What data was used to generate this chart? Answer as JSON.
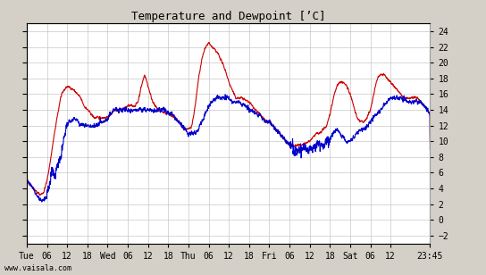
{
  "title": "Temperature and Dewpoint [’C]",
  "ylabel_right_ticks": [
    -2,
    0,
    2,
    4,
    6,
    8,
    10,
    12,
    14,
    16,
    18,
    20,
    22,
    24
  ],
  "ylim": [
    -3.0,
    25.0
  ],
  "background_color": "#d4d0c8",
  "plot_bg_color": "#ffffff",
  "grid_color": "#c8c8c8",
  "temp_color": "#cc0000",
  "dewpoint_color": "#0000cc",
  "watermark": "www.vaisala.com",
  "x_tick_labels": [
    "Tue",
    "06",
    "12",
    "18",
    "Wed",
    "06",
    "12",
    "18",
    "Thu",
    "06",
    "12",
    "18",
    "Fri",
    "06",
    "12",
    "18",
    "Sat",
    "06",
    "12",
    "23:45"
  ],
  "x_tick_positions": [
    0,
    6,
    12,
    18,
    24,
    30,
    36,
    42,
    48,
    54,
    60,
    66,
    72,
    78,
    84,
    90,
    96,
    102,
    108,
    119.75
  ],
  "xlim": [
    0,
    119.75
  ],
  "line_width": 0.8
}
